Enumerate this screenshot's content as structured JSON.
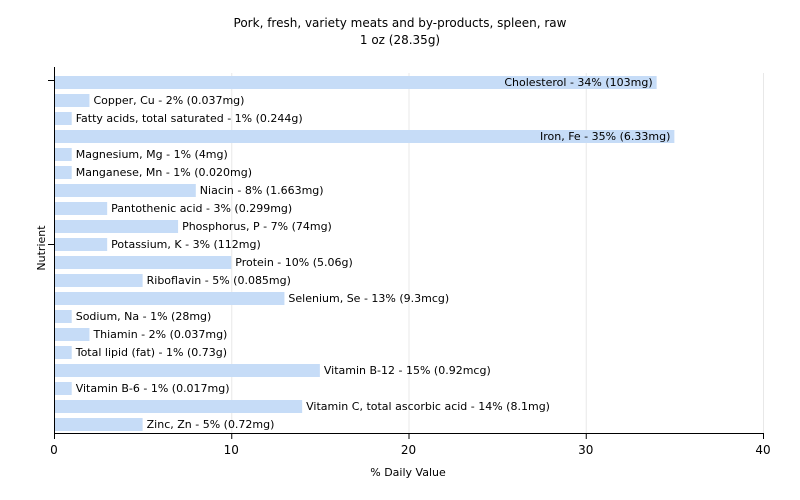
{
  "chart_data": {
    "type": "bar",
    "orientation": "horizontal",
    "title": "Pork, fresh, variety meats and by-products, spleen, raw",
    "subtitle": "1 oz (28.35g)",
    "xlabel": "% Daily Value",
    "ylabel": "Nutrient",
    "xlim": [
      0,
      40
    ],
    "xticks": [
      0,
      10,
      20,
      30,
      40
    ],
    "grid": true,
    "bar_color": "#c6dcf7",
    "grid_color": "#e8e8e8",
    "categories": [
      "Cholesterol",
      "Copper, Cu",
      "Fatty acids, total saturated",
      "Iron, Fe",
      "Magnesium, Mg",
      "Manganese, Mn",
      "Niacin",
      "Pantothenic acid",
      "Phosphorus, P",
      "Potassium, K",
      "Protein",
      "Riboflavin",
      "Selenium, Se",
      "Sodium, Na",
      "Thiamin",
      "Total lipid (fat)",
      "Vitamin B-12",
      "Vitamin B-6",
      "Vitamin C, total ascorbic acid",
      "Zinc, Zn"
    ],
    "values": [
      34,
      2,
      1,
      35,
      1,
      1,
      8,
      3,
      7,
      3,
      10,
      5,
      13,
      1,
      2,
      1,
      15,
      1,
      14,
      5
    ],
    "labels": [
      "Cholesterol - 34% (103mg)",
      "Copper, Cu - 2% (0.037mg)",
      "Fatty acids, total saturated - 1% (0.244g)",
      "Iron, Fe - 35% (6.33mg)",
      "Magnesium, Mg - 1% (4mg)",
      "Manganese, Mn - 1% (0.020mg)",
      "Niacin - 8% (1.663mg)",
      "Pantothenic acid - 3% (0.299mg)",
      "Phosphorus, P - 7% (74mg)",
      "Potassium, K - 3% (112mg)",
      "Protein - 10% (5.06g)",
      "Riboflavin - 5% (0.085mg)",
      "Selenium, Se - 13% (9.3mcg)",
      "Sodium, Na - 1% (28mg)",
      "Thiamin - 2% (0.037mg)",
      "Total lipid (fat) - 1% (0.73g)",
      "Vitamin B-12 - 15% (0.92mcg)",
      "Vitamin B-6 - 1% (0.017mg)",
      "Vitamin C, total ascorbic acid - 14% (8.1mg)",
      "Zinc, Zn - 5% (0.72mg)"
    ]
  }
}
